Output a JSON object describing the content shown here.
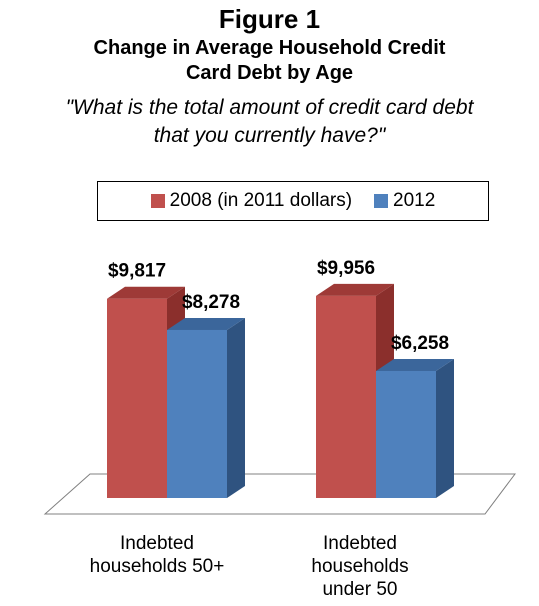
{
  "header": {
    "figure_label": "Figure 1",
    "title_line1": "Change in Average Household Credit",
    "title_line2": "Card Debt by Age",
    "subtitle_line1": "\"What is the total amount of credit card debt",
    "subtitle_line2": "that you currently have?\""
  },
  "chart_data": {
    "type": "bar",
    "style": "3d-clustered",
    "title": "Change in Average Household Credit Card Debt by Age",
    "subtitle": "\"What is the total amount of credit card debt that you currently have?\"",
    "categories": [
      "Indebted households 50+",
      "Indebted households under 50"
    ],
    "category_lines": [
      [
        "Indebted",
        "households 50+"
      ],
      [
        "Indebted",
        "households",
        "under 50"
      ]
    ],
    "series": [
      {
        "name": "2008 (in 2011 dollars)",
        "values": [
          9817,
          9956
        ],
        "labels": [
          "$9,817",
          "$9,956"
        ],
        "color": "#C0504D",
        "side_color": "#8B2F2C",
        "top_color": "#9E3A37"
      },
      {
        "name": "2012",
        "values": [
          8278,
          6258
        ],
        "labels": [
          "$8,278",
          "$6,258"
        ],
        "color": "#4F81BD",
        "side_color": "#2F5380",
        "top_color": "#3B669B"
      }
    ],
    "ylim": [
      0,
      10000
    ],
    "legend_position": "top",
    "grid": false,
    "axis_visible": false
  }
}
